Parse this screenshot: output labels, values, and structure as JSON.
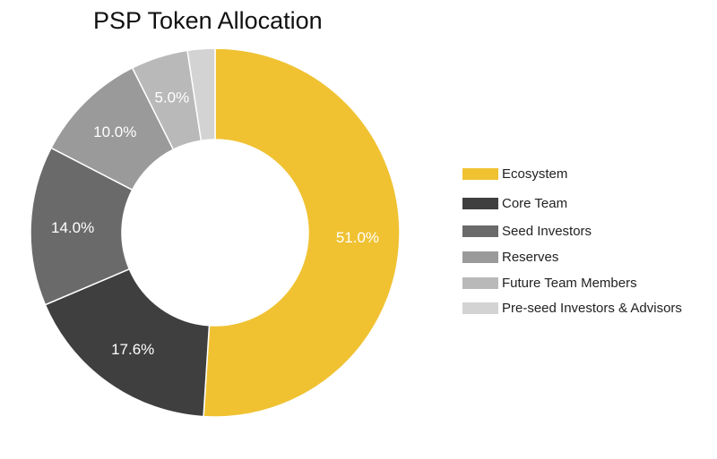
{
  "chart_data": {
    "type": "pie",
    "title": "PSP Token Allocation",
    "labels": [
      "Ecosystem",
      "Core Team",
      "Seed Investors",
      "Reserves",
      "Future Team Members",
      "Pre-seed Investors & Advisors"
    ],
    "values": [
      51.0,
      17.6,
      14.0,
      10.0,
      5.0,
      2.4
    ],
    "data_labels": [
      "51.0%",
      "17.6%",
      "14.0%",
      "10.0%",
      "5.0%",
      ""
    ],
    "colors": [
      "#F0C232",
      "#3F3F3F",
      "#6A6A6A",
      "#9A9A9A",
      "#B9B9B9",
      "#D3D3D3"
    ],
    "legend_position": "right"
  }
}
